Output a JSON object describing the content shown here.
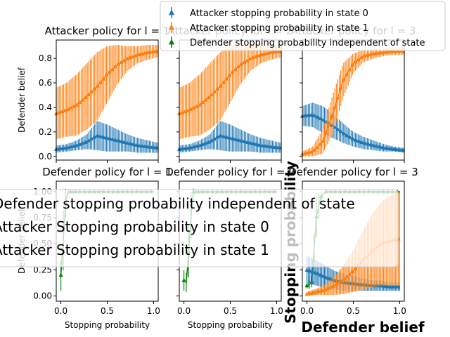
{
  "colors": {
    "attacker_state0": "#1f77b4",
    "attacker_state1": "#ff7f0e",
    "defender": "#008000"
  },
  "top_legend": [
    "Attacker stopping probability in state 0",
    "Attacker stopping probability in state 1",
    "Defender stopping probability independent of state"
  ],
  "bottom_legend": [
    "Defender stopping probability independent of state",
    "Attacker Stopping probability in state 0",
    "Attacker Stopping probability in state 1"
  ],
  "overlay_labels": {
    "ylabel": "Stopping probability",
    "xlabel": "Defender belief"
  },
  "chart_data": [
    {
      "type": "line",
      "title": "Attacker policy for l = 1",
      "xlabel": "",
      "ylabel": "Defender belief",
      "xlim": [
        0,
        1
      ],
      "ylim": [
        -0.03,
        0.95
      ],
      "xticks": [
        "",
        "",
        ""
      ],
      "yticks": [
        "0.0",
        "0.2",
        "0.4",
        "0.6",
        "0.8"
      ],
      "series": [
        {
          "name": "Attacker stopping probability in state 0",
          "x": [
            0.0,
            0.1,
            0.2,
            0.3,
            0.4,
            0.5,
            0.6,
            0.7,
            0.8,
            0.9,
            1.0
          ],
          "y": [
            0.06,
            0.07,
            0.09,
            0.12,
            0.17,
            0.15,
            0.13,
            0.11,
            0.09,
            0.08,
            0.07
          ],
          "err": [
            0.03,
            0.03,
            0.04,
            0.06,
            0.12,
            0.11,
            0.09,
            0.07,
            0.06,
            0.05,
            0.04
          ]
        },
        {
          "name": "Attacker stopping probability in state 1",
          "x": [
            0.0,
            0.1,
            0.2,
            0.3,
            0.4,
            0.5,
            0.6,
            0.7,
            0.8,
            0.9,
            1.0
          ],
          "y": [
            0.35,
            0.38,
            0.42,
            0.49,
            0.57,
            0.67,
            0.75,
            0.8,
            0.83,
            0.85,
            0.86
          ],
          "err": [
            0.21,
            0.22,
            0.25,
            0.27,
            0.28,
            0.23,
            0.16,
            0.1,
            0.07,
            0.06,
            0.05
          ]
        }
      ]
    },
    {
      "type": "line",
      "title": "Attacker policy for l = 2",
      "xlabel": "",
      "ylabel": "",
      "xlim": [
        0,
        1
      ],
      "ylim": [
        -0.03,
        0.95
      ],
      "xticks": [
        "",
        "",
        ""
      ],
      "yticks": [
        "",
        "",
        "",
        "",
        ""
      ],
      "series": [
        {
          "name": "Attacker stopping probability in state 0",
          "x": [
            0.0,
            0.1,
            0.2,
            0.3,
            0.4,
            0.5,
            0.6,
            0.7,
            0.8,
            0.9,
            1.0
          ],
          "y": [
            0.06,
            0.07,
            0.09,
            0.12,
            0.17,
            0.15,
            0.13,
            0.11,
            0.09,
            0.08,
            0.07
          ],
          "err": [
            0.03,
            0.03,
            0.04,
            0.06,
            0.12,
            0.11,
            0.09,
            0.07,
            0.06,
            0.05,
            0.04
          ]
        },
        {
          "name": "Attacker stopping probability in state 1",
          "x": [
            0.0,
            0.1,
            0.2,
            0.3,
            0.4,
            0.5,
            0.6,
            0.7,
            0.8,
            0.9,
            1.0
          ],
          "y": [
            0.35,
            0.38,
            0.42,
            0.49,
            0.57,
            0.67,
            0.75,
            0.8,
            0.83,
            0.85,
            0.86
          ],
          "err": [
            0.21,
            0.22,
            0.25,
            0.27,
            0.28,
            0.23,
            0.16,
            0.1,
            0.07,
            0.06,
            0.05
          ]
        }
      ]
    },
    {
      "type": "line",
      "title": "Attacker policy for l = 3",
      "xlabel": "",
      "ylabel": "",
      "xlim": [
        0,
        1
      ],
      "ylim": [
        -0.03,
        0.95
      ],
      "xticks": [
        "",
        "",
        ""
      ],
      "yticks": [
        "",
        "",
        "",
        "",
        ""
      ],
      "series": [
        {
          "name": "Attacker stopping probability in state 0",
          "x": [
            0.0,
            0.1,
            0.2,
            0.3,
            0.4,
            0.5,
            0.6,
            0.7,
            0.8,
            0.9,
            1.0
          ],
          "y": [
            0.33,
            0.34,
            0.3,
            0.25,
            0.19,
            0.14,
            0.11,
            0.09,
            0.07,
            0.06,
            0.05
          ],
          "err": [
            0.08,
            0.1,
            0.11,
            0.1,
            0.08,
            0.06,
            0.05,
            0.04,
            0.03,
            0.02,
            0.02
          ]
        },
        {
          "name": "Attacker stopping probability in state 1",
          "x": [
            0.0,
            0.1,
            0.2,
            0.3,
            0.4,
            0.5,
            0.6,
            0.7,
            0.8,
            0.9,
            1.0
          ],
          "y": [
            0.02,
            0.04,
            0.12,
            0.35,
            0.62,
            0.76,
            0.82,
            0.84,
            0.85,
            0.86,
            0.86
          ],
          "err": [
            0.02,
            0.04,
            0.1,
            0.16,
            0.14,
            0.08,
            0.05,
            0.04,
            0.03,
            0.03,
            0.03
          ]
        }
      ]
    },
    {
      "type": "line",
      "title": "Defender policy for l = 1",
      "xlabel": "Stopping probability",
      "ylabel": "Defender belief",
      "xlim": [
        -0.05,
        1.05
      ],
      "ylim": [
        -0.05,
        1.1
      ],
      "xticks": [
        "0.0",
        "0.5",
        "1.0"
      ],
      "yticks": [
        "0.00",
        "0.25",
        "0.50",
        "0.75",
        "1.00"
      ],
      "series": [
        {
          "name": "Defender stopping probability independent of state",
          "x": [
            0.0,
            0.02,
            0.04,
            0.06,
            0.08,
            0.1,
            0.12,
            0.15,
            0.2,
            0.3,
            0.5,
            0.7,
            0.9,
            1.0
          ],
          "y": [
            0.2,
            0.45,
            0.75,
            1.0,
            1.0,
            1.0,
            1.0,
            1.0,
            1.0,
            1.0,
            1.0,
            1.0,
            1.0,
            1.0
          ],
          "err": [
            0.15,
            0.3,
            0.25,
            0.05,
            0.02,
            0.02,
            0.02,
            0.02,
            0.01,
            0.01,
            0.01,
            0.01,
            0.01,
            0.01
          ]
        }
      ]
    },
    {
      "type": "line",
      "title": "Defender policy for l = 2",
      "xlabel": "Stopping probability",
      "ylabel": "",
      "xlim": [
        -0.05,
        1.05
      ],
      "ylim": [
        -0.05,
        1.1
      ],
      "xticks": [
        "0.0",
        "0.5",
        "1.0"
      ],
      "yticks": [
        "",
        "",
        "",
        "",
        ""
      ],
      "series": [
        {
          "name": "Defender stopping probability independent of state",
          "x": [
            0.0,
            0.02,
            0.04,
            0.06,
            0.1,
            0.15,
            0.2,
            0.3,
            0.5,
            0.7,
            0.9,
            1.0
          ],
          "y": [
            0.15,
            0.1,
            0.2,
            0.6,
            1.0,
            1.0,
            1.0,
            1.0,
            1.0,
            1.0,
            1.0,
            1.0
          ],
          "err": [
            0.1,
            0.08,
            0.12,
            0.35,
            0.03,
            0.02,
            0.02,
            0.01,
            0.01,
            0.01,
            0.01,
            0.01
          ]
        }
      ]
    },
    {
      "type": "line",
      "title": "Defender policy for l = 3",
      "xlabel": "",
      "ylabel": "",
      "xlim": [
        -0.05,
        1.05
      ],
      "ylim": [
        -0.05,
        1.1
      ],
      "xticks": [
        "0.0",
        "0.5",
        "1.0"
      ],
      "yticks": [
        "",
        "",
        "",
        "",
        ""
      ],
      "series": [
        {
          "name": "Defender stopping probability independent of state",
          "x": [
            0.0,
            0.05,
            0.1,
            0.15,
            0.2,
            0.25,
            0.3,
            0.4,
            0.5,
            0.6,
            0.8,
            1.0
          ],
          "y": [
            0.1,
            0.12,
            0.75,
            0.95,
            1.0,
            1.0,
            1.0,
            1.0,
            1.0,
            1.0,
            1.0,
            1.0
          ],
          "err": [
            0.03,
            0.05,
            0.2,
            0.05,
            0.02,
            0.01,
            0.01,
            0.01,
            0.01,
            0.01,
            0.01,
            0.01
          ]
        },
        {
          "name": "Attacker Stopping probability in state 0",
          "x": [
            0.0,
            0.1,
            0.2,
            0.3,
            0.4,
            0.5,
            0.6,
            0.7,
            0.8,
            0.9,
            1.0
          ],
          "y": [
            0.25,
            0.22,
            0.18,
            0.15,
            0.13,
            0.12,
            0.11,
            0.1,
            0.1,
            0.09,
            0.09
          ],
          "err": [
            0.13,
            0.12,
            0.11,
            0.09,
            0.08,
            0.07,
            0.06,
            0.05,
            0.05,
            0.04,
            0.04
          ]
        },
        {
          "name": "Attacker Stopping probability in state 1",
          "x": [
            0.0,
            0.1,
            0.2,
            0.3,
            0.4,
            0.5,
            0.6,
            0.7,
            0.8,
            0.9,
            1.0
          ],
          "y": [
            0.02,
            0.04,
            0.06,
            0.1,
            0.16,
            0.24,
            0.34,
            0.43,
            0.5,
            0.53,
            0.55
          ],
          "err": [
            0.02,
            0.03,
            0.05,
            0.09,
            0.14,
            0.2,
            0.28,
            0.35,
            0.4,
            0.43,
            0.45
          ]
        }
      ]
    }
  ]
}
